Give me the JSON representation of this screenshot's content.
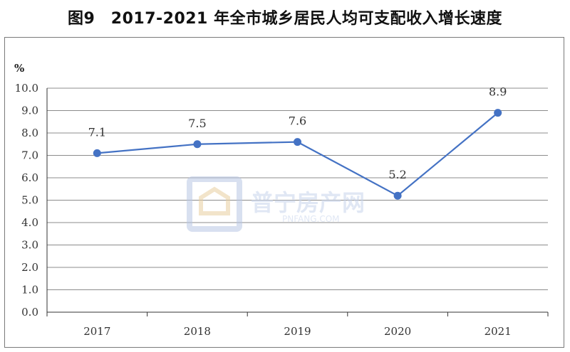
{
  "title": "图9　2017-2021 年全市城乡居民人均可支配收入增长速度",
  "watermark": {
    "cn": "普宁房产网",
    "en": "PNFANG.COM",
    "color": "#cfd8ea"
  },
  "colors": {
    "line": "#4472c4",
    "grid": "#8c8c8c"
  },
  "chart_data": {
    "type": "line",
    "title": "图9　2017-2021 年全市城乡居民人均可支配收入增长速度",
    "ylabel": "%",
    "xlabel": "",
    "ylim": [
      0,
      10
    ],
    "grid": true,
    "legend": "none",
    "categories": [
      "2017",
      "2018",
      "2019",
      "2020",
      "2021"
    ],
    "ytick_labels": [
      "0.0",
      "1.0",
      "2.0",
      "3.0",
      "4.0",
      "5.0",
      "6.0",
      "7.0",
      "8.0",
      "9.0",
      "10.0"
    ],
    "series": [
      {
        "values": [
          7.1,
          7.5,
          7.6,
          5.2,
          8.9
        ],
        "labels": [
          "7.1",
          "7.5",
          "7.6",
          "5.2",
          "8.9"
        ]
      }
    ]
  }
}
